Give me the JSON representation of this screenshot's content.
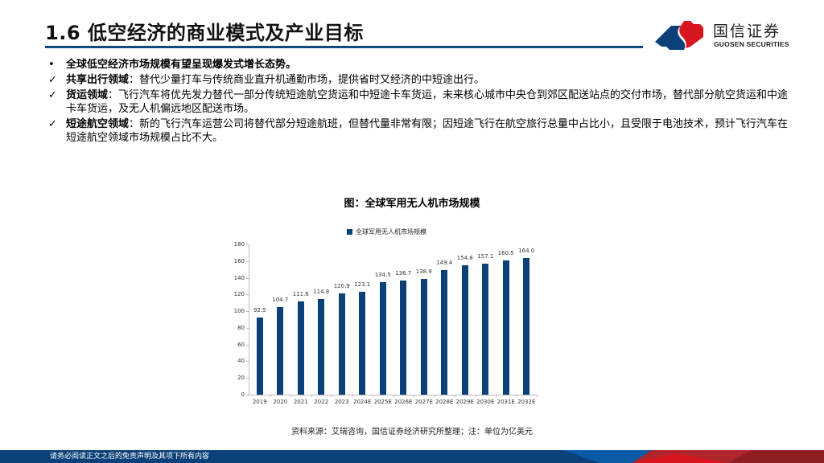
{
  "header": {
    "title": "1.6 低空经济的商业模式及产业目标",
    "logo": {
      "name_cn": "国信证券",
      "name_en": "GUOSEN SECURITIES",
      "icon": "guosen-logo-icon"
    }
  },
  "bullets": [
    {
      "marker": "•",
      "lead": "全球低空经济市场规模有望呈现爆发式增长态势。",
      "text": ""
    },
    {
      "marker": "✓",
      "lead": "共享出行领域",
      "text": "：替代少量打车与传统商业直升机通勤市场，提供省时又经济的中短途出行。"
    },
    {
      "marker": "✓",
      "lead": "货运领域",
      "text": "：飞行汽车将优先发力替代一部分传统短途航空货运和中短途卡车货运，未来核心城市中央仓到郊区配送站点的交付市场，替代部分航空货运和中途卡车货运，及无人机偏远地区配送市场。"
    },
    {
      "marker": "✓",
      "lead": "短途航空领域",
      "text": "：新的飞行汽车运营公司将替代部分短途航班，但替代量非常有限；因短途飞行在航空旅行总量中占比小，且受限于电池技术，预计飞行汽车在短途航空领域市场规模占比不大。"
    }
  ],
  "chart": {
    "caption": "图：全球军用无人机市场规模",
    "legend": "全球军用无人机市场规模",
    "source": "资料来源：艾瑞咨询，国信证券经济研究所整理；注：单位为亿美元"
  },
  "chart_data": {
    "type": "bar",
    "title": "图：全球军用无人机市场规模",
    "xlabel": "",
    "ylabel": "",
    "unit": "亿美元",
    "ylim": [
      0,
      180
    ],
    "yticks": [
      0,
      20,
      40,
      60,
      80,
      100,
      120,
      140,
      160,
      180
    ],
    "grid": false,
    "legend_position": "top",
    "categories": [
      "2019",
      "2020",
      "2021",
      "2022",
      "2023",
      "2024E",
      "2025E",
      "2026E",
      "2027E",
      "2028E",
      "2029E",
      "2030E",
      "2031E",
      "2032E"
    ],
    "series": [
      {
        "name": "全球军用无人机市场规模",
        "color": "#0b4178",
        "values": [
          92.5,
          104.7,
          111.6,
          114.8,
          120.9,
          123.1,
          134.5,
          136.7,
          138.9,
          149.4,
          154.8,
          157.1,
          160.5,
          164.0
        ],
        "labels": [
          "92.5",
          "104.7",
          "111.6",
          "114.8",
          "120.9",
          "123.1",
          "134.5",
          "136.7",
          "138.9",
          "149.4",
          "154.8",
          "157.1",
          "160.5",
          "164.0"
        ]
      }
    ]
  },
  "footer": {
    "disclaimer": "请务必阅读正文之后的免责声明及其项下所有内容"
  },
  "colors": {
    "brand_blue": "#0b4178",
    "brand_red": "#d7161f",
    "bar": "#0b4178"
  }
}
